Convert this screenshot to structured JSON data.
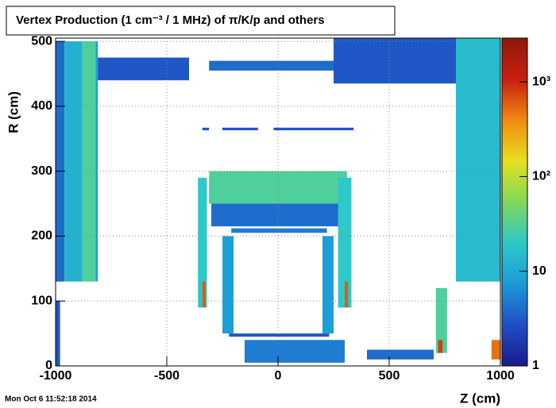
{
  "chart_data": {
    "type": "heatmap",
    "title": "Vertex Production (1 cm⁻³ / 1 MHz) of  π/K/p and others",
    "x_label": "Z (cm)",
    "y_label": "R (cm)",
    "timestamp": "Mon Oct  6 11:52:18 2014",
    "xlim": [
      -1000,
      1000
    ],
    "ylim": [
      0,
      505
    ],
    "xticks": [
      -1000,
      -500,
      0,
      500,
      1000
    ],
    "yticks": [
      0,
      100,
      200,
      300,
      400,
      500
    ],
    "zlim": [
      1,
      2900
    ],
    "zlog": true,
    "zticks": [
      1,
      10,
      {
        "value": 100,
        "label": "10²"
      },
      {
        "value": 1000,
        "label": "10³"
      }
    ],
    "grid": true,
    "colormap": [
      "#1a1a8c",
      "#1f4fc4",
      "#1d9ad8",
      "#2cc8c8",
      "#7fd85a",
      "#e6e020",
      "#f08a10",
      "#c81e10",
      "#8c1a0a"
    ],
    "cells": [
      {
        "x": [
          -1000,
          -960
        ],
        "y": [
          130,
          500
        ],
        "value": 4
      },
      {
        "x": [
          -960,
          -880
        ],
        "y": [
          130,
          500
        ],
        "value": 12
      },
      {
        "x": [
          -880,
          -820
        ],
        "y": [
          130,
          500
        ],
        "value": 30
      },
      {
        "x": [
          -820,
          -810
        ],
        "y": [
          130,
          500
        ],
        "value": 8
      },
      {
        "x": [
          -810,
          -400
        ],
        "y": [
          440,
          475
        ],
        "value": 3
      },
      {
        "x": [
          -310,
          310
        ],
        "y": [
          455,
          470
        ],
        "value": 4
      },
      {
        "x": [
          250,
          800
        ],
        "y": [
          435,
          505
        ],
        "value": 3
      },
      {
        "x": [
          800,
          1000
        ],
        "y": [
          130,
          505
        ],
        "value": 15
      },
      {
        "x": [
          -340,
          -310
        ],
        "y": [
          363,
          367
        ],
        "value": 3
      },
      {
        "x": [
          -250,
          -90
        ],
        "y": [
          363,
          367
        ],
        "value": 3
      },
      {
        "x": [
          -20,
          340
        ],
        "y": [
          363,
          367
        ],
        "value": 3
      },
      {
        "x": [
          -310,
          310
        ],
        "y": [
          250,
          300
        ],
        "value": 30
      },
      {
        "x": [
          -300,
          300
        ],
        "y": [
          215,
          250
        ],
        "value": 4
      },
      {
        "x": [
          -360,
          -320
        ],
        "y": [
          90,
          290
        ],
        "value": 20
      },
      {
        "x": [
          -340,
          -325
        ],
        "y": [
          90,
          130
        ],
        "value": 600
      },
      {
        "x": [
          270,
          330
        ],
        "y": [
          90,
          290
        ],
        "value": 20
      },
      {
        "x": [
          300,
          315
        ],
        "y": [
          90,
          130
        ],
        "value": 600
      },
      {
        "x": [
          -250,
          -200
        ],
        "y": [
          50,
          200
        ],
        "value": 8
      },
      {
        "x": [
          200,
          250
        ],
        "y": [
          50,
          200
        ],
        "value": 8
      },
      {
        "x": [
          -210,
          220
        ],
        "y": [
          205,
          212
        ],
        "value": 5
      },
      {
        "x": [
          -220,
          230
        ],
        "y": [
          45,
          50
        ],
        "value": 3
      },
      {
        "x": [
          710,
          760
        ],
        "y": [
          20,
          120
        ],
        "value": 30
      },
      {
        "x": [
          720,
          740
        ],
        "y": [
          20,
          40
        ],
        "value": 800
      },
      {
        "x": [
          960,
          1000
        ],
        "y": [
          10,
          40
        ],
        "value": 500
      },
      {
        "x": [
          -150,
          300
        ],
        "y": [
          5,
          40
        ],
        "value": 5
      },
      {
        "x": [
          400,
          700
        ],
        "y": [
          10,
          25
        ],
        "value": 4
      },
      {
        "x": [
          -1000,
          -980
        ],
        "y": [
          0,
          100
        ],
        "value": 3
      }
    ]
  }
}
